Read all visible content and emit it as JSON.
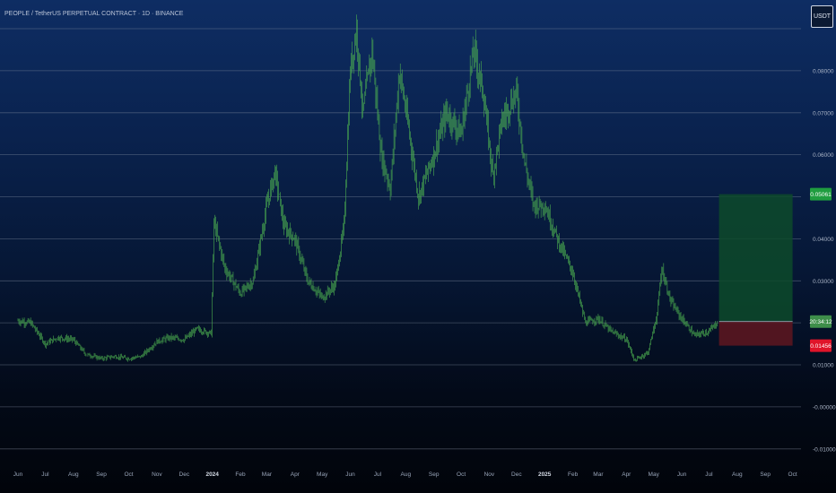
{
  "header": {
    "title": "PEOPLE / TetherUS PERPETUAL CONTRACT · 1D · BINANCE",
    "currency_button": "USDT"
  },
  "colors": {
    "candle": "#4caf50",
    "grid": "#8a94a6",
    "target_zone": "#0d4a2a",
    "stop_zone": "#5a1620",
    "target_tag": "#1f9d3f",
    "countdown_tag": "#3e8e4a",
    "stop_tag": "#e0142a"
  },
  "chart_data": {
    "type": "candlestick",
    "title": "PEOPLE / TetherUS PERPETUAL CONTRACT · 1D · BINANCE",
    "y_axis_labels": [
      "0.08000",
      "0.07000",
      "0.06000",
      "0.04000",
      "0.03000",
      "0.01000",
      "-0.00000",
      "-0.01000"
    ],
    "x_axis_labels": [
      "Jun",
      "Jul",
      "Aug",
      "Sep",
      "Oct",
      "Nov",
      "Dec",
      "2024",
      "Feb",
      "Mar",
      "Apr",
      "May",
      "Jun",
      "Jul",
      "Aug",
      "Sep",
      "Oct",
      "Nov",
      "Dec",
      "2025",
      "Feb",
      "Mar",
      "Apr",
      "May",
      "Jun",
      "Jul",
      "Aug",
      "Sep",
      "Oct"
    ],
    "x_axis_year_labels": [
      "2024",
      "2025"
    ],
    "approx_close_path": [
      [
        "2023-06-01",
        0.0205
      ],
      [
        "2023-06-15",
        0.02
      ],
      [
        "2023-07-01",
        0.015
      ],
      [
        "2023-07-15",
        0.0165
      ],
      [
        "2023-08-01",
        0.016
      ],
      [
        "2023-08-15",
        0.0125
      ],
      [
        "2023-09-01",
        0.0115
      ],
      [
        "2023-09-15",
        0.012
      ],
      [
        "2023-10-01",
        0.0115
      ],
      [
        "2023-10-15",
        0.012
      ],
      [
        "2023-11-01",
        0.0155
      ],
      [
        "2023-11-15",
        0.0165
      ],
      [
        "2023-12-01",
        0.016
      ],
      [
        "2023-12-15",
        0.0185
      ],
      [
        "2023-12-31",
        0.0175
      ],
      [
        "2024-01-03",
        0.044
      ],
      [
        "2024-01-15",
        0.033
      ],
      [
        "2024-02-01",
        0.027
      ],
      [
        "2024-02-15",
        0.03
      ],
      [
        "2024-03-01",
        0.048
      ],
      [
        "2024-03-10",
        0.056
      ],
      [
        "2024-03-20",
        0.043
      ],
      [
        "2024-04-01",
        0.04
      ],
      [
        "2024-04-15",
        0.03
      ],
      [
        "2024-05-01",
        0.026
      ],
      [
        "2024-05-15",
        0.029
      ],
      [
        "2024-05-25",
        0.043
      ],
      [
        "2024-06-01",
        0.08
      ],
      [
        "2024-06-08",
        0.09
      ],
      [
        "2024-06-15",
        0.07
      ],
      [
        "2024-06-25",
        0.085
      ],
      [
        "2024-07-05",
        0.06
      ],
      [
        "2024-07-15",
        0.052
      ],
      [
        "2024-07-25",
        0.08
      ],
      [
        "2024-08-05",
        0.065
      ],
      [
        "2024-08-15",
        0.05
      ],
      [
        "2024-09-01",
        0.06
      ],
      [
        "2024-09-15",
        0.07
      ],
      [
        "2024-10-01",
        0.065
      ],
      [
        "2024-10-15",
        0.085
      ],
      [
        "2024-10-25",
        0.075
      ],
      [
        "2024-11-05",
        0.055
      ],
      [
        "2024-11-15",
        0.068
      ],
      [
        "2024-12-01",
        0.075
      ],
      [
        "2024-12-10",
        0.058
      ],
      [
        "2024-12-20",
        0.048
      ],
      [
        "2025-01-01",
        0.048
      ],
      [
        "2025-01-15",
        0.04
      ],
      [
        "2025-02-01",
        0.032
      ],
      [
        "2025-02-15",
        0.02
      ],
      [
        "2025-03-01",
        0.021
      ],
      [
        "2025-03-15",
        0.018
      ],
      [
        "2025-04-01",
        0.016
      ],
      [
        "2025-04-10",
        0.011
      ],
      [
        "2025-04-25",
        0.013
      ],
      [
        "2025-05-05",
        0.022
      ],
      [
        "2025-05-10",
        0.033
      ],
      [
        "2025-05-20",
        0.025
      ],
      [
        "2025-06-01",
        0.021
      ],
      [
        "2025-06-15",
        0.017
      ],
      [
        "2025-07-01",
        0.018
      ],
      [
        "2025-07-10",
        0.02
      ]
    ],
    "position": {
      "type": "long",
      "entry": 0.0203,
      "target": 0.05061,
      "stop": 0.01456,
      "start": "2025-07-12",
      "end": "2025-10-01"
    },
    "price_tags": {
      "target": "0.05061",
      "countdown": "20:34:12",
      "stop": "0.01456"
    },
    "grid": true
  }
}
